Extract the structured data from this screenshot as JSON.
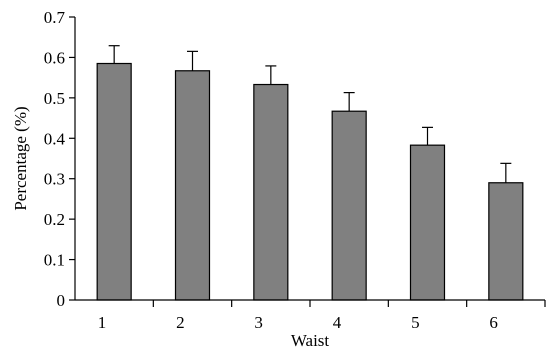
{
  "chart_data": {
    "type": "bar",
    "title": "",
    "xlabel": "Waist",
    "ylabel": "Percentage (%)",
    "categories": [
      "1",
      "2",
      "3",
      "4",
      "5",
      "6"
    ],
    "values": [
      0.585,
      0.567,
      0.533,
      0.467,
      0.383,
      0.29
    ],
    "errors": [
      0.044,
      0.048,
      0.046,
      0.046,
      0.044,
      0.048
    ],
    "ylim": [
      0,
      0.7
    ],
    "yticks": [
      0,
      0.1,
      0.2,
      0.3,
      0.4,
      0.5,
      0.6,
      0.7
    ],
    "ytick_labels": [
      "0",
      "0.1",
      "0.2",
      "0.3",
      "0.4",
      "0.5",
      "0.6",
      "0.7"
    ],
    "bar_color": "#808080",
    "grid": false,
    "legend": "none"
  }
}
